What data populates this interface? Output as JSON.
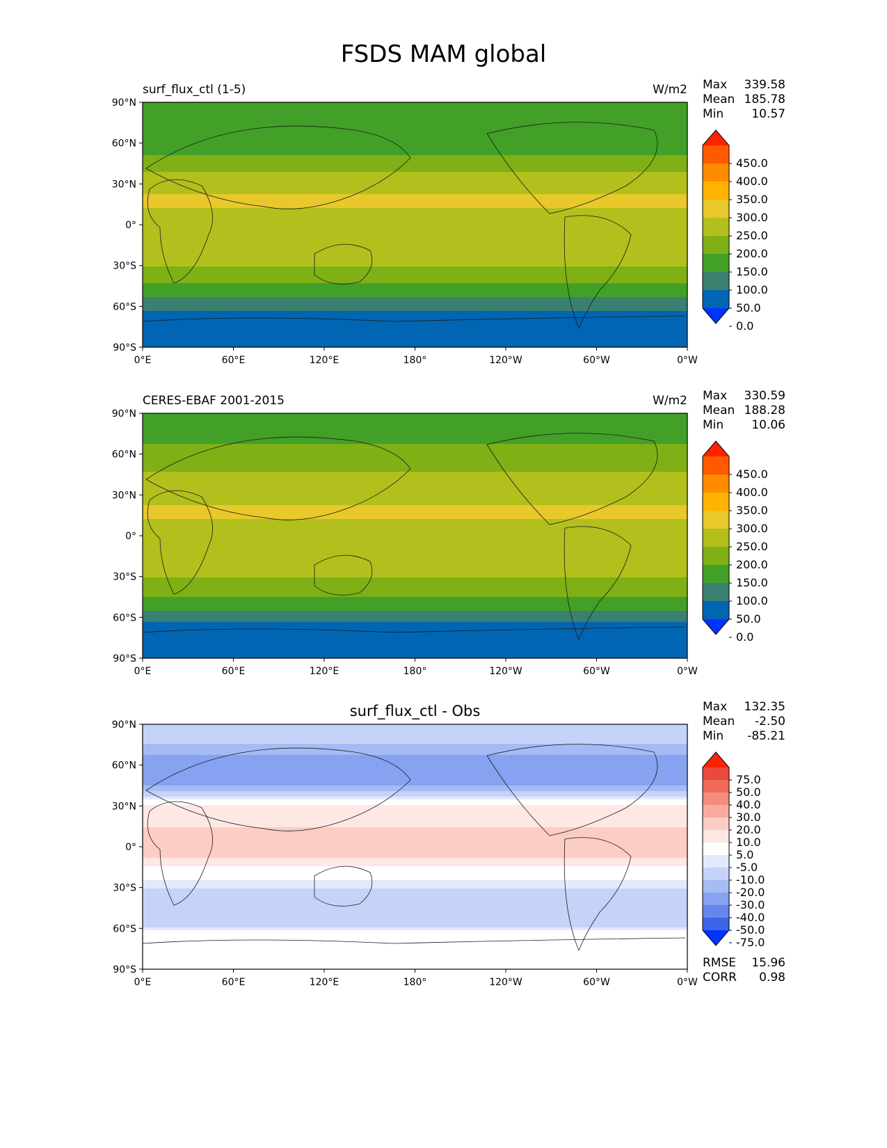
{
  "page": {
    "title": "FSDS MAM global"
  },
  "panels": [
    {
      "left_title": "surf_flux_ctl (1-5)",
      "right_title": "W/m2",
      "center_title": "",
      "stats": {
        "Max": "339.58",
        "Mean": "185.78",
        "Min": "10.57"
      },
      "extra_stats": [],
      "colorbar": {
        "labels": [
          "450.0",
          "400.0",
          "350.0",
          "300.0",
          "250.0",
          "200.0",
          "150.0",
          "100.0",
          "50.0",
          "0.0"
        ],
        "colors": [
          "#ff2200",
          "#ff5a00",
          "#ff8c00",
          "#ffb300",
          "#e8c82a",
          "#b3bf1c",
          "#7fb015",
          "#42a028",
          "#3a8070",
          "#0066b3",
          "#0033ff"
        ]
      }
    },
    {
      "left_title": "CERES-EBAF 2001-2015",
      "right_title": "W/m2",
      "center_title": "",
      "stats": {
        "Max": "330.59",
        "Mean": "188.28",
        "Min": "10.06"
      },
      "extra_stats": [],
      "colorbar": {
        "labels": [
          "450.0",
          "400.0",
          "350.0",
          "300.0",
          "250.0",
          "200.0",
          "150.0",
          "100.0",
          "50.0",
          "0.0"
        ],
        "colors": [
          "#ff2200",
          "#ff5a00",
          "#ff8c00",
          "#ffb300",
          "#e8c82a",
          "#b3bf1c",
          "#7fb015",
          "#42a028",
          "#3a8070",
          "#0066b3",
          "#0033ff"
        ]
      }
    },
    {
      "left_title": "",
      "right_title": "",
      "center_title": "surf_flux_ctl - Obs",
      "stats": {
        "Max": "132.35",
        "Mean": "-2.50",
        "Min": "-85.21"
      },
      "extra_stats": [
        {
          "label": "RMSE",
          "value": "15.96"
        },
        {
          "label": "CORR",
          "value": "0.98"
        }
      ],
      "colorbar": {
        "labels": [
          "75.0",
          "50.0",
          "40.0",
          "30.0",
          "20.0",
          "10.0",
          "5.0",
          "-5.0",
          "-10.0",
          "-20.0",
          "-30.0",
          "-40.0",
          "-50.0",
          "-75.0"
        ],
        "colors": [
          "#ff2200",
          "#ea4a3c",
          "#f06a58",
          "#f48c7c",
          "#f8aca0",
          "#fbcdc4",
          "#fde8e4",
          "#ffffff",
          "#e3e9fc",
          "#c6d3f8",
          "#a6bbf4",
          "#86a2f0",
          "#6586ec",
          "#3c66e8",
          "#0033ff"
        ]
      }
    }
  ],
  "chart_data": [
    {
      "type": "heatmap",
      "title": "surf_flux_ctl (1-5)",
      "units": "W/m2",
      "x_ticks": [
        "0°E",
        "60°E",
        "120°E",
        "180°",
        "120°W",
        "60°W",
        "0°W"
      ],
      "y_ticks": [
        "90°N",
        "60°N",
        "30°N",
        "0°",
        "30°S",
        "60°S",
        "90°S"
      ],
      "stats": {
        "max": 339.58,
        "mean": 185.78,
        "min": 10.57
      },
      "levels": [
        0,
        50,
        100,
        150,
        200,
        250,
        300,
        350,
        400,
        450
      ],
      "zonal_mean_profile": {
        "lat": [
          90,
          75,
          60,
          45,
          30,
          15,
          0,
          -15,
          -30,
          -45,
          -55,
          -65,
          -75,
          -90
        ],
        "value": [
          130,
          110,
          120,
          170,
          245,
          255,
          225,
          230,
          200,
          140,
          90,
          40,
          35,
          30
        ]
      }
    },
    {
      "type": "heatmap",
      "title": "CERES-EBAF 2001-2015",
      "units": "W/m2",
      "x_ticks": [
        "0°E",
        "60°E",
        "120°E",
        "180°",
        "120°W",
        "60°W",
        "0°W"
      ],
      "y_ticks": [
        "90°N",
        "60°N",
        "30°N",
        "0°",
        "30°S",
        "60°S",
        "90°S"
      ],
      "stats": {
        "max": 330.59,
        "mean": 188.28,
        "min": 10.06
      },
      "levels": [
        0,
        50,
        100,
        150,
        200,
        250,
        300,
        350,
        400,
        450
      ],
      "zonal_mean_profile": {
        "lat": [
          90,
          75,
          60,
          45,
          30,
          15,
          0,
          -15,
          -30,
          -45,
          -55,
          -65,
          -75,
          -90
        ],
        "value": [
          140,
          125,
          170,
          205,
          245,
          255,
          230,
          230,
          205,
          150,
          100,
          45,
          35,
          30
        ]
      }
    },
    {
      "type": "heatmap",
      "title": "surf_flux_ctl - Obs",
      "units": "W/m2",
      "x_ticks": [
        "0°E",
        "60°E",
        "120°E",
        "180°",
        "120°W",
        "60°W",
        "0°W"
      ],
      "y_ticks": [
        "90°N",
        "60°N",
        "30°N",
        "0°",
        "30°S",
        "60°S",
        "90°S"
      ],
      "stats": {
        "max": 132.35,
        "mean": -2.5,
        "min": -85.21,
        "rmse": 15.96,
        "corr": 0.98
      },
      "levels": [
        -75,
        -50,
        -40,
        -30,
        -20,
        -10,
        -5,
        5,
        10,
        20,
        30,
        40,
        50,
        75
      ],
      "zonal_mean_profile": {
        "lat": [
          90,
          75,
          60,
          45,
          30,
          15,
          0,
          -15,
          -30,
          -45,
          -55,
          -65,
          -75,
          -90
        ],
        "value": [
          -10,
          -20,
          -40,
          -30,
          5,
          10,
          15,
          5,
          -10,
          -12,
          -15,
          0,
          0,
          0
        ]
      }
    }
  ]
}
